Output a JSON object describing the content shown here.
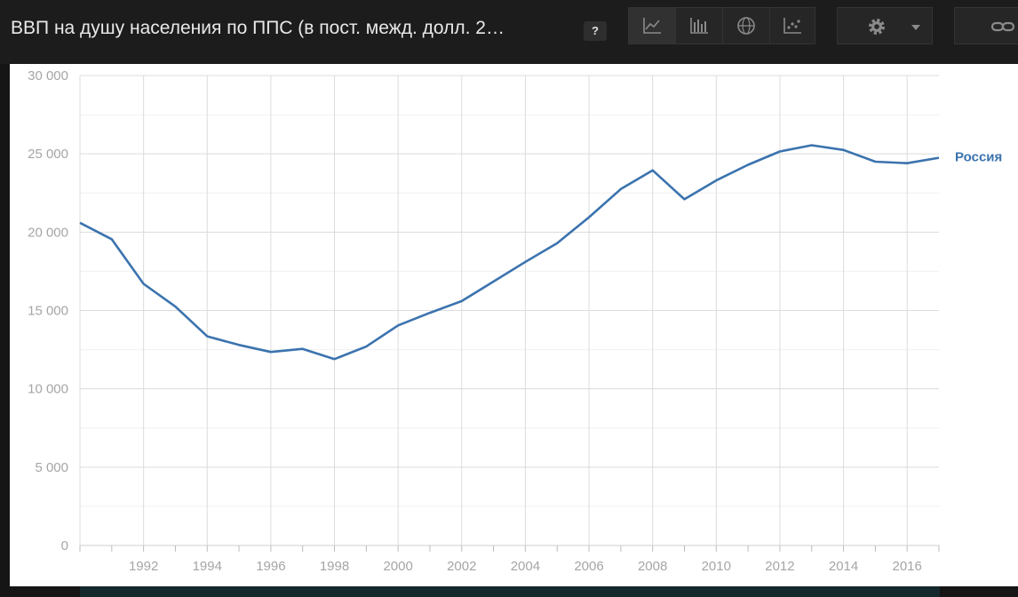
{
  "header": {
    "title": "ВВП на душу населения по ППС (в пост. межд. долл. 2…",
    "help_label": "?",
    "view_buttons": [
      {
        "name": "line-chart",
        "icon": "line-chart-icon"
      },
      {
        "name": "bar-chart",
        "icon": "bar-chart-icon"
      },
      {
        "name": "map",
        "icon": "globe-icon"
      },
      {
        "name": "scatter",
        "icon": "scatter-chart-icon"
      }
    ],
    "settings_icon": "gear-icon",
    "dropdown_icon": "caret-down-icon",
    "link_icon": "link-icon"
  },
  "colors": {
    "series_line": "#3b73ae",
    "label": "#3b73ae",
    "grid": "#dcdcdc",
    "tick_text": "#a5a5a5"
  },
  "chart_data": {
    "type": "line",
    "title": "ВВП на душу населения по ППС (в пост. межд. долл. 2…",
    "xlabel": "",
    "ylabel": "",
    "x": [
      1990,
      1991,
      1992,
      1993,
      1994,
      1995,
      1996,
      1997,
      1998,
      1999,
      2000,
      2001,
      2002,
      2003,
      2004,
      2005,
      2006,
      2007,
      2008,
      2009,
      2010,
      2011,
      2012,
      2013,
      2014,
      2015,
      2016,
      2017
    ],
    "series": [
      {
        "name": "Россия",
        "values": [
          20600,
          19550,
          16700,
          15250,
          13350,
          12800,
          12350,
          12550,
          11900,
          12700,
          14050,
          14850,
          15600,
          16850,
          18100,
          19300,
          20950,
          22750,
          23950,
          22100,
          23300,
          24300,
          25150,
          25550,
          25250,
          24500,
          24400,
          24750
        ]
      }
    ],
    "xlim": [
      1990,
      2017
    ],
    "ylim": [
      0,
      30000
    ],
    "yticks": [
      0,
      5000,
      10000,
      15000,
      20000,
      25000,
      30000
    ],
    "ytick_labels": [
      "0",
      "5 000",
      "10 000",
      "15 000",
      "20 000",
      "25 000",
      "30 000"
    ],
    "xtick_labels": [
      "1992",
      "1994",
      "1996",
      "1998",
      "2000",
      "2002",
      "2004",
      "2006",
      "2008",
      "2010",
      "2012",
      "2014",
      "2016"
    ],
    "grid": true,
    "legend": "inline label at end of line (right)"
  }
}
